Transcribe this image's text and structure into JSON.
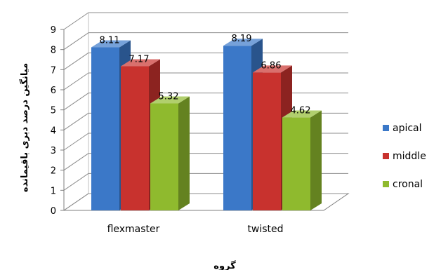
{
  "chart_data": {
    "type": "bar",
    "xlabel": "گروه",
    "ylabel": "میانگین درصد دبری باقیمانده",
    "categories": [
      "flexmaster",
      "twisted"
    ],
    "series": [
      {
        "name": "apical",
        "values": [
          8.11,
          8.19
        ],
        "color": "#3b78c8"
      },
      {
        "name": "middle",
        "values": [
          7.17,
          6.86
        ],
        "color": "#c8322e"
      },
      {
        "name": "cronal",
        "values": [
          5.32,
          4.62
        ],
        "color": "#8fba2e"
      }
    ],
    "data_labels": [
      [
        "8.11",
        "7.17",
        "5.32"
      ],
      [
        "8.19",
        "6.86",
        "4.62"
      ]
    ],
    "y_ticks": [
      "0",
      "1",
      "2",
      "3",
      "4",
      "5",
      "6",
      "7",
      "8",
      "9"
    ],
    "ylim": [
      0,
      9
    ],
    "grid": true,
    "legend_position": "right",
    "style": "3d-clustered-column"
  }
}
